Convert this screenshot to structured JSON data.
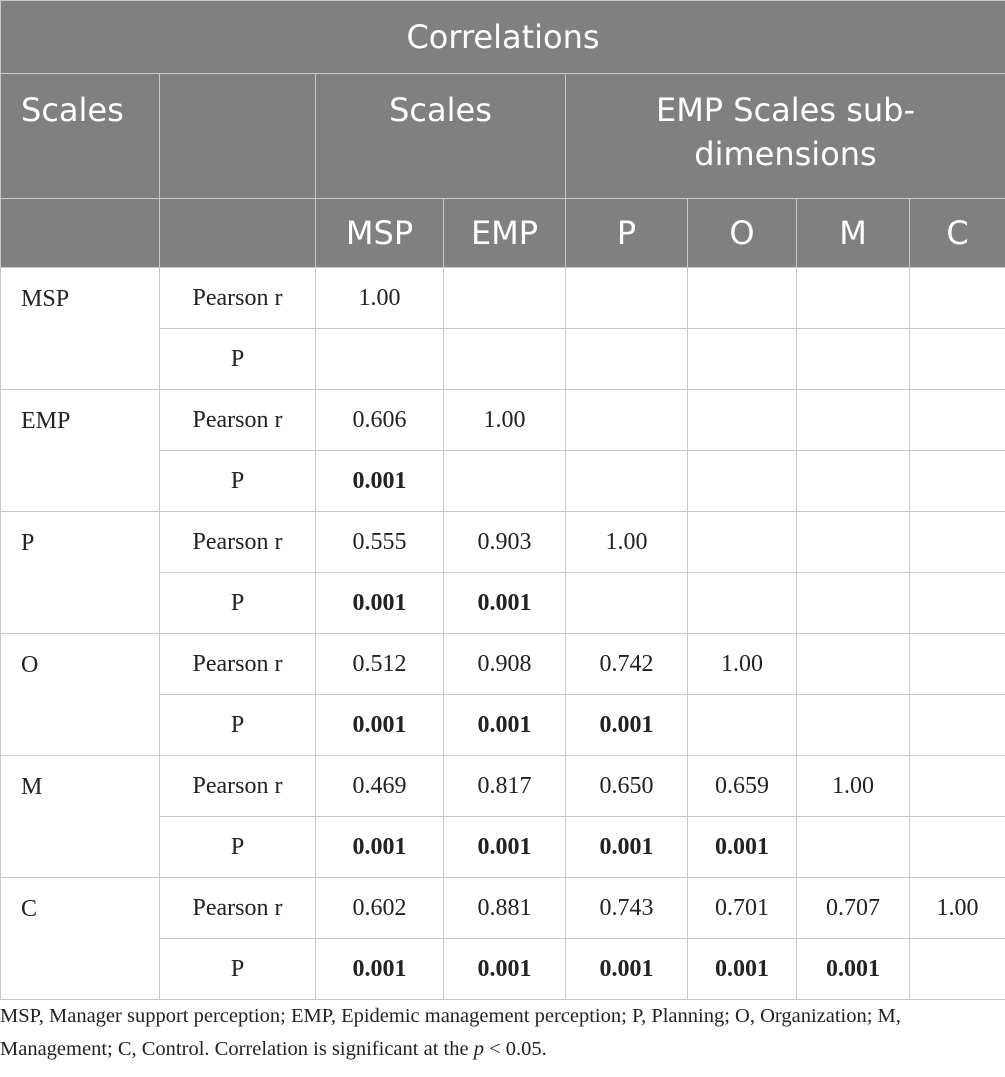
{
  "title": "Correlations",
  "header": {
    "scales_row_label": "Scales",
    "group_scales": "Scales",
    "group_emp_sub": "EMP Scales sub-dimensions",
    "columns": [
      "MSP",
      "EMP",
      "P",
      "O",
      "M",
      "C"
    ]
  },
  "rows": [
    {
      "scale": "MSP",
      "r_label": "Pearson r",
      "r": [
        "1.00",
        "",
        "",
        "",
        "",
        ""
      ],
      "p_label": "P",
      "p": [
        "",
        "",
        "",
        "",
        "",
        ""
      ]
    },
    {
      "scale": "EMP",
      "r_label": "Pearson r",
      "r": [
        "0.606",
        "1.00",
        "",
        "",
        "",
        ""
      ],
      "p_label": "P",
      "p": [
        "0.001",
        "",
        "",
        "",
        "",
        ""
      ]
    },
    {
      "scale": "P",
      "r_label": "Pearson r",
      "r": [
        "0.555",
        "0.903",
        "1.00",
        "",
        "",
        ""
      ],
      "p_label": "P",
      "p": [
        "0.001",
        "0.001",
        "",
        "",
        "",
        ""
      ]
    },
    {
      "scale": "O",
      "r_label": "Pearson r",
      "r": [
        "0.512",
        "0.908",
        "0.742",
        "1.00",
        "",
        ""
      ],
      "p_label": "P",
      "p": [
        "0.001",
        "0.001",
        "0.001",
        "",
        "",
        ""
      ]
    },
    {
      "scale": "M",
      "r_label": "Pearson r",
      "r": [
        "0.469",
        "0.817",
        "0.650",
        "0.659",
        "1.00",
        ""
      ],
      "p_label": "P",
      "p": [
        "0.001",
        "0.001",
        "0.001",
        "0.001",
        "",
        ""
      ]
    },
    {
      "scale": "C",
      "r_label": "Pearson r",
      "r": [
        "0.602",
        "0.881",
        "0.743",
        "0.701",
        "0.707",
        "1.00"
      ],
      "p_label": "P",
      "p": [
        "0.001",
        "0.001",
        "0.001",
        "0.001",
        "0.001",
        ""
      ]
    }
  ],
  "footnote": {
    "text": "MSP, Manager support perception; EMP, Epidemic management perception; P, Planning; O, Organization; M, Management; C, Control. Correlation is significant at the ",
    "p_symbol": "p",
    "tail": " < 0.05."
  }
}
